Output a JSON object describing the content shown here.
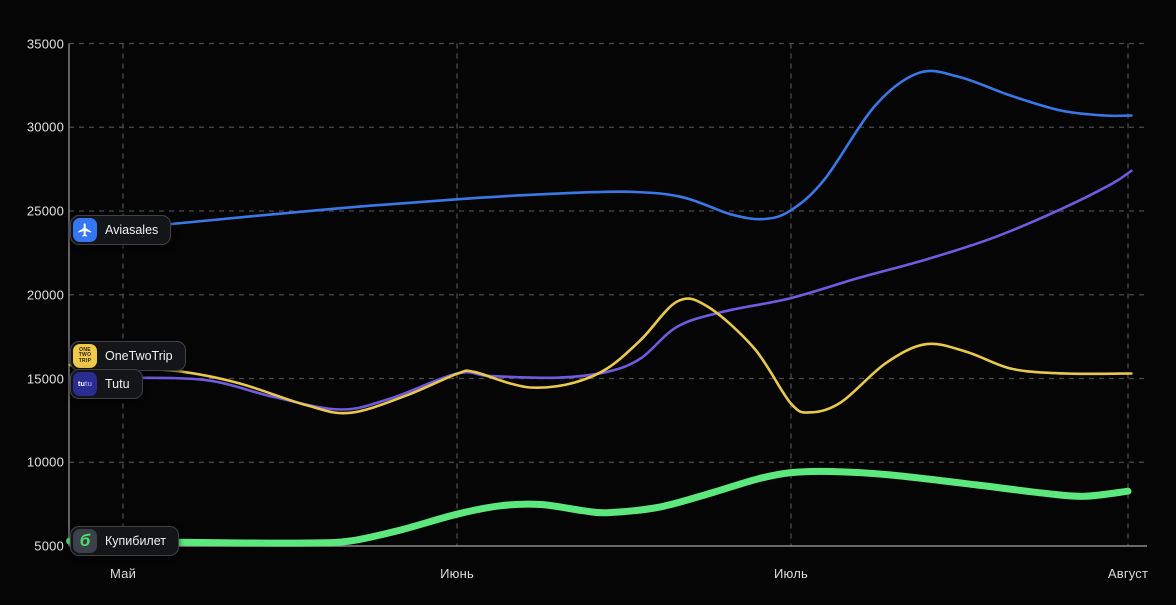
{
  "chart": {
    "background": "#050505",
    "grid_color": "#4b4b4b",
    "axis_color": "#8a8a8a",
    "label_color": "#e2e2e2"
  },
  "chart_data": {
    "type": "line",
    "title": "",
    "xlabel": "",
    "ylabel": "",
    "x_unit": "month_index (0=Май, 1=Июнь, 2=Июль, 3=Август)",
    "ylim": [
      5000,
      35000
    ],
    "grid": "dashed",
    "legend_position": "on-plot-left",
    "x_ticks": [
      {
        "label": "Май",
        "month": 0
      },
      {
        "label": "Июнь",
        "month": 1
      },
      {
        "label": "Июль",
        "month": 2
      },
      {
        "label": "Август",
        "month": 3
      }
    ],
    "y_ticks": [
      {
        "label": "5000",
        "value": 5000
      },
      {
        "label": "10000",
        "value": 10000
      },
      {
        "label": "15000",
        "value": 15000
      },
      {
        "label": "20000",
        "value": 20000
      },
      {
        "label": "25000",
        "value": 25000
      },
      {
        "label": "30000",
        "value": 30000
      },
      {
        "label": "35000",
        "value": 35000
      }
    ],
    "series": [
      {
        "name": "Aviasales",
        "color": "#3B78E7",
        "width": 2.6,
        "points": [
          [
            -0.16,
            23800
          ],
          [
            0,
            23950
          ],
          [
            0.38,
            24680
          ],
          [
            0.7,
            25250
          ],
          [
            1.0,
            25700
          ],
          [
            1.25,
            26000
          ],
          [
            1.5,
            26150
          ],
          [
            1.67,
            25850
          ],
          [
            1.82,
            24800
          ],
          [
            1.92,
            24520
          ],
          [
            2.0,
            25050
          ],
          [
            2.1,
            26900
          ],
          [
            2.25,
            31300
          ],
          [
            2.38,
            33250
          ],
          [
            2.5,
            33000
          ],
          [
            2.65,
            31900
          ],
          [
            2.8,
            31000
          ],
          [
            2.93,
            30700
          ],
          [
            3.01,
            30700
          ]
        ]
      },
      {
        "name": "OneTwoTrip",
        "color": "#E9C84D",
        "width": 2.6,
        "points": [
          [
            -0.16,
            15800
          ],
          [
            0,
            15650
          ],
          [
            0.18,
            15400
          ],
          [
            0.35,
            14700
          ],
          [
            0.55,
            13400
          ],
          [
            0.68,
            12950
          ],
          [
            0.85,
            14000
          ],
          [
            1.0,
            15280
          ],
          [
            1.05,
            15400
          ],
          [
            1.16,
            14700
          ],
          [
            1.24,
            14450
          ],
          [
            1.35,
            14750
          ],
          [
            1.45,
            15600
          ],
          [
            1.55,
            17300
          ],
          [
            1.66,
            19600
          ],
          [
            1.75,
            19300
          ],
          [
            1.89,
            16800
          ],
          [
            2.0,
            13500
          ],
          [
            2.06,
            12980
          ],
          [
            2.15,
            13600
          ],
          [
            2.28,
            15900
          ],
          [
            2.4,
            17050
          ],
          [
            2.52,
            16600
          ],
          [
            2.65,
            15600
          ],
          [
            2.78,
            15320
          ],
          [
            2.9,
            15280
          ],
          [
            3.01,
            15300
          ]
        ]
      },
      {
        "name": "Tutu",
        "color": "#6F5BE0",
        "width": 2.6,
        "points": [
          [
            -0.16,
            15050
          ],
          [
            0,
            15050
          ],
          [
            0.25,
            14900
          ],
          [
            0.45,
            13900
          ],
          [
            0.65,
            13150
          ],
          [
            0.8,
            13800
          ],
          [
            1.0,
            15300
          ],
          [
            1.1,
            15150
          ],
          [
            1.3,
            15050
          ],
          [
            1.45,
            15400
          ],
          [
            1.55,
            16200
          ],
          [
            1.66,
            18100
          ],
          [
            1.8,
            19000
          ],
          [
            2.0,
            19800
          ],
          [
            2.2,
            21000
          ],
          [
            2.4,
            22100
          ],
          [
            2.6,
            23400
          ],
          [
            2.8,
            25100
          ],
          [
            2.95,
            26600
          ],
          [
            3.01,
            27400
          ]
        ]
      },
      {
        "name": "Купибилет",
        "color": "#5DE87E",
        "width": 7,
        "points": [
          [
            -0.16,
            5300
          ],
          [
            0,
            5270
          ],
          [
            0.3,
            5190
          ],
          [
            0.55,
            5180
          ],
          [
            0.68,
            5300
          ],
          [
            0.83,
            5950
          ],
          [
            1.0,
            6900
          ],
          [
            1.13,
            7400
          ],
          [
            1.25,
            7480
          ],
          [
            1.38,
            7100
          ],
          [
            1.45,
            6990
          ],
          [
            1.6,
            7300
          ],
          [
            1.75,
            8100
          ],
          [
            1.9,
            9000
          ],
          [
            2.0,
            9380
          ],
          [
            2.12,
            9450
          ],
          [
            2.3,
            9230
          ],
          [
            2.55,
            8650
          ],
          [
            2.75,
            8150
          ],
          [
            2.87,
            7970
          ],
          [
            3.0,
            8270
          ]
        ]
      }
    ]
  },
  "legend": {
    "aviasales": {
      "label": "Aviasales",
      "icon_bg": "#3577F2"
    },
    "onetwotrip": {
      "label": "OneTwoTrip",
      "icon_bg": "#EFC94B",
      "icon_line_1": "ONE",
      "icon_line_2": "TWO",
      "icon_line_3": "TRIP"
    },
    "tutu": {
      "label": "Tutu",
      "icon_bg": "#2A2D8F",
      "icon_text_1": "tu",
      "icon_text_2": "tu"
    },
    "kupibilet": {
      "label": "Купибилет",
      "icon_bg": "#3A414B",
      "icon_glyph": "б",
      "icon_glyph_color": "#52E06B"
    }
  }
}
